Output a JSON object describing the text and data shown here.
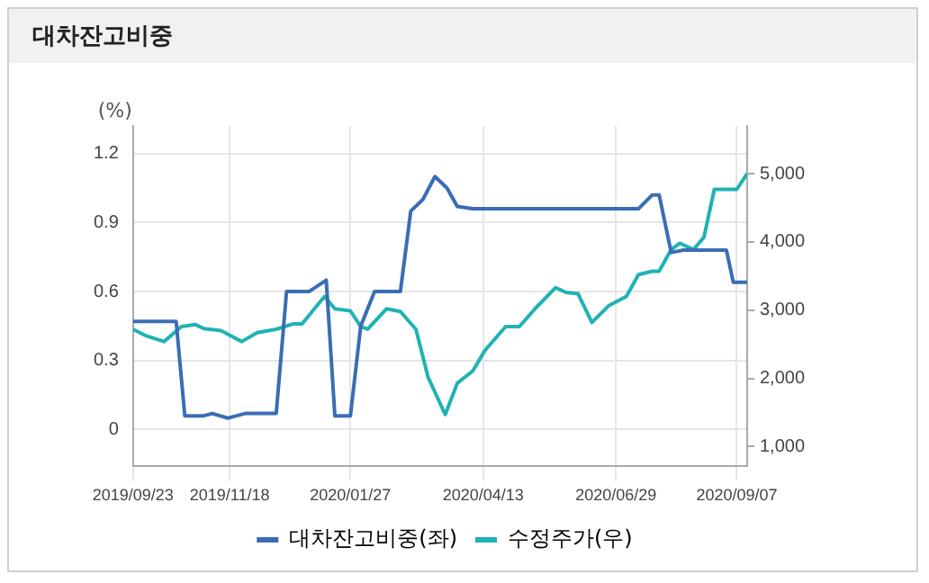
{
  "chart_data": {
    "type": "line",
    "title": "대차잔고비중",
    "ylabel": "(%)",
    "xlim": [
      "2019-09-23",
      "2020-09-13"
    ],
    "xticks": [
      {
        "value": "2019-09-23",
        "label": "2019/09/23"
      },
      {
        "value": "2019-11-18",
        "label": "2019/11/18"
      },
      {
        "value": "2020-01-27",
        "label": "2020/01/27"
      },
      {
        "value": "2020-04-13",
        "label": "2020/04/13"
      },
      {
        "value": "2020-06-29",
        "label": "2020/06/29"
      },
      {
        "value": "2020-09-07",
        "label": "2020/09/07"
      }
    ],
    "ylim": [
      -0.16,
      1.32
    ],
    "yticks": [
      0,
      0.3,
      0.6,
      0.9,
      1.2
    ],
    "y2lim": [
      710,
      5700
    ],
    "y2ticks": [
      {
        "value": 1000,
        "label": "1,000"
      },
      {
        "value": 2000,
        "label": "2,000"
      },
      {
        "value": 3000,
        "label": "3,000"
      },
      {
        "value": 4000,
        "label": "4,000"
      },
      {
        "value": 5000,
        "label": "5,000"
      }
    ],
    "grid": true,
    "legend": "bottom",
    "marker": "none",
    "line_style": "solid",
    "series": [
      {
        "name": "대차잔고비중(좌)",
        "color": "#3a6db5",
        "x": [
          "2019-09-23",
          "2019-10-18",
          "2019-10-23",
          "2019-11-03",
          "2019-11-08",
          "2019-11-17",
          "2019-11-27",
          "2019-12-15",
          "2019-12-21",
          "2020-01-03",
          "2020-01-13",
          "2020-01-18",
          "2020-01-27",
          "2020-02-02",
          "2020-02-10",
          "2020-02-25",
          "2020-03-02",
          "2020-03-09",
          "2020-03-16",
          "2020-03-23",
          "2020-03-29",
          "2020-04-07",
          "2020-07-12",
          "2020-07-20",
          "2020-07-24",
          "2020-07-31",
          "2020-08-07",
          "2020-09-01",
          "2020-09-05",
          "2020-09-13"
        ],
        "values": [
          0.47,
          0.47,
          0.06,
          0.06,
          0.07,
          0.05,
          0.07,
          0.07,
          0.6,
          0.6,
          0.65,
          0.06,
          0.06,
          0.45,
          0.6,
          0.6,
          0.95,
          1.0,
          1.1,
          1.05,
          0.97,
          0.96,
          0.96,
          1.02,
          1.02,
          0.77,
          0.78,
          0.78,
          0.64,
          0.64
        ]
      },
      {
        "name": "수정주가(우)",
        "color": "#20b2b4",
        "axis": "y2",
        "x": [
          "2019-09-23",
          "2019-09-30",
          "2019-10-11",
          "2019-10-21",
          "2019-10-29",
          "2019-11-03",
          "2019-11-13",
          "2019-11-25",
          "2019-12-04",
          "2019-12-15",
          "2019-12-25",
          "2019-12-30",
          "2020-01-12",
          "2020-01-18",
          "2020-01-27",
          "2020-02-02",
          "2020-02-06",
          "2020-02-17",
          "2020-02-25",
          "2020-03-05",
          "2020-03-12",
          "2020-03-22",
          "2020-03-29",
          "2020-04-07",
          "2020-04-14",
          "2020-04-26",
          "2020-05-04",
          "2020-05-13",
          "2020-05-25",
          "2020-05-31",
          "2020-06-07",
          "2020-06-15",
          "2020-06-25",
          "2020-07-05",
          "2020-07-12",
          "2020-07-20",
          "2020-07-24",
          "2020-07-31",
          "2020-08-05",
          "2020-08-13",
          "2020-08-19",
          "2020-08-25",
          "2020-09-07",
          "2020-09-13"
        ],
        "values": [
          2720,
          2630,
          2540,
          2760,
          2790,
          2730,
          2700,
          2540,
          2670,
          2720,
          2800,
          2800,
          3200,
          3020,
          2990,
          2760,
          2720,
          3020,
          2980,
          2720,
          2020,
          1470,
          1930,
          2110,
          2410,
          2760,
          2760,
          3020,
          3330,
          3260,
          3240,
          2820,
          3070,
          3200,
          3520,
          3570,
          3570,
          3890,
          3980,
          3890,
          4070,
          4770,
          4770,
          5000
        ]
      }
    ]
  }
}
